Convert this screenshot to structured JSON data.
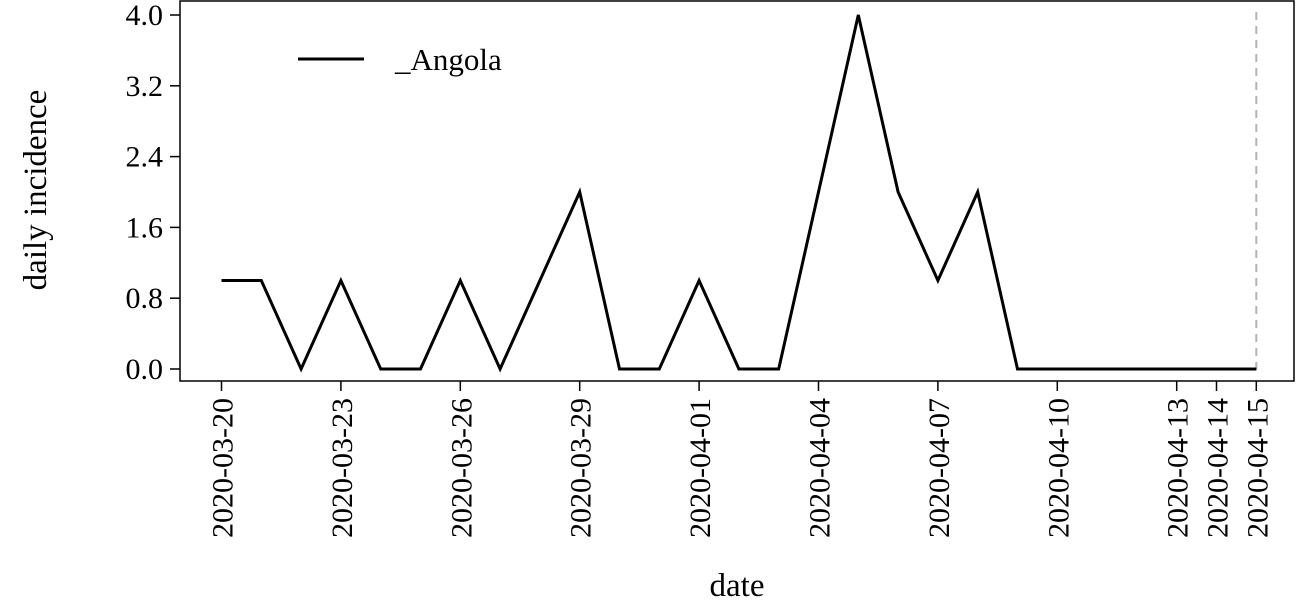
{
  "chart_data": {
    "type": "line",
    "xlabel": "date",
    "ylabel": "daily incidence",
    "ylim": [
      0,
      4.0
    ],
    "y_ticks": [
      "0.0",
      "0.8",
      "1.6",
      "2.4",
      "3.2",
      "4.0"
    ],
    "x_ticks": [
      "2020-03-20",
      "2020-03-23",
      "2020-03-26",
      "2020-03-29",
      "2020-04-01",
      "2020-04-04",
      "2020-04-07",
      "2020-04-10",
      "2020-04-13",
      "2020-04-14",
      "2020-04-15"
    ],
    "x": [
      "2020-03-20",
      "2020-03-21",
      "2020-03-22",
      "2020-03-23",
      "2020-03-24",
      "2020-03-25",
      "2020-03-26",
      "2020-03-27",
      "2020-03-28",
      "2020-03-29",
      "2020-03-30",
      "2020-03-31",
      "2020-04-01",
      "2020-04-02",
      "2020-04-03",
      "2020-04-04",
      "2020-04-05",
      "2020-04-06",
      "2020-04-07",
      "2020-04-08",
      "2020-04-09",
      "2020-04-10",
      "2020-04-11",
      "2020-04-12",
      "2020-04-13",
      "2020-04-14",
      "2020-04-15"
    ],
    "series": [
      {
        "name": "_Angola",
        "color": "#000000",
        "values": [
          1,
          1,
          0,
          1,
          0,
          0,
          1,
          0,
          1,
          2,
          0,
          0,
          1,
          0,
          0,
          2,
          4,
          2,
          1,
          2,
          0,
          0,
          0,
          0,
          0,
          0,
          0
        ]
      }
    ],
    "reference_line": {
      "x": "2020-04-15",
      "style": "dashed",
      "color": "#b3b3b3"
    },
    "legend": "top-left",
    "grid": false
  }
}
